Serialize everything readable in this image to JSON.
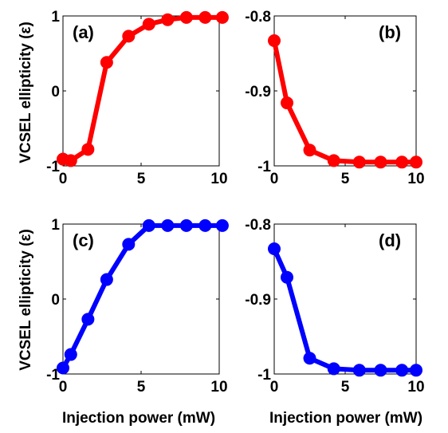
{
  "figure": {
    "ylabel": "VCSEL ellipticity (ε)",
    "xlabel": "Injection power (mW)"
  },
  "chart_data": [
    {
      "type": "line",
      "panel_label": "(a)",
      "color": "#ff0000",
      "xlim": [
        0,
        10
      ],
      "ylim": [
        -1,
        1
      ],
      "xticks": [
        "0",
        "5",
        "10"
      ],
      "yticks": [
        "-1",
        "0",
        "1"
      ],
      "ylabel": "VCSEL ellipticity (ε)",
      "xlabel": "",
      "series": [
        {
          "x": [
            0,
            0.5,
            1.6,
            2.8,
            4.2,
            5.5,
            6.7,
            7.9,
            9.1,
            10.2
          ],
          "y": [
            -0.91,
            -0.93,
            -0.78,
            0.38,
            0.73,
            0.89,
            0.95,
            0.98,
            0.98,
            0.98
          ]
        }
      ]
    },
    {
      "type": "line",
      "panel_label": "(b)",
      "color": "#ff0000",
      "xlim": [
        0,
        10
      ],
      "ylim": [
        -1,
        -0.8
      ],
      "xticks": [
        "0",
        "5",
        "10"
      ],
      "yticks": [
        "-1",
        "-0.9",
        "-0.8"
      ],
      "ylabel": "",
      "xlabel": "",
      "series": [
        {
          "x": [
            0,
            0.9,
            2.5,
            4.2,
            6.0,
            7.5,
            9.0,
            10.0
          ],
          "y": [
            -0.833,
            -0.916,
            -0.979,
            -0.993,
            -0.995,
            -0.995,
            -0.995,
            -0.995
          ]
        }
      ]
    },
    {
      "type": "line",
      "panel_label": "(c)",
      "color": "#0000ff",
      "xlim": [
        0,
        10
      ],
      "ylim": [
        -1,
        1
      ],
      "xticks": [
        "0",
        "5",
        "10"
      ],
      "yticks": [
        "-1",
        "0",
        "1"
      ],
      "ylabel": "VCSEL ellipticity (ε)",
      "xlabel": "Injection power (mW)",
      "series": [
        {
          "x": [
            0,
            0.5,
            1.6,
            2.8,
            4.2,
            5.5,
            6.7,
            7.9,
            9.1,
            10.2
          ],
          "y": [
            -0.92,
            -0.74,
            -0.27,
            0.26,
            0.73,
            0.98,
            0.98,
            0.98,
            0.98,
            0.98
          ]
        }
      ]
    },
    {
      "type": "line",
      "panel_label": "(d)",
      "color": "#0000ff",
      "xlim": [
        0,
        10
      ],
      "ylim": [
        -1,
        -0.8
      ],
      "xticks": [
        "0",
        "5",
        "10"
      ],
      "yticks": [
        "-1",
        "-0.9",
        "-0.8"
      ],
      "ylabel": "",
      "xlabel": "Injection power (mW)",
      "series": [
        {
          "x": [
            0,
            0.9,
            2.5,
            4.2,
            6.0,
            7.5,
            9.0,
            10.0
          ],
          "y": [
            -0.833,
            -0.871,
            -0.979,
            -0.993,
            -0.995,
            -0.995,
            -0.995,
            -0.995
          ]
        }
      ]
    }
  ]
}
